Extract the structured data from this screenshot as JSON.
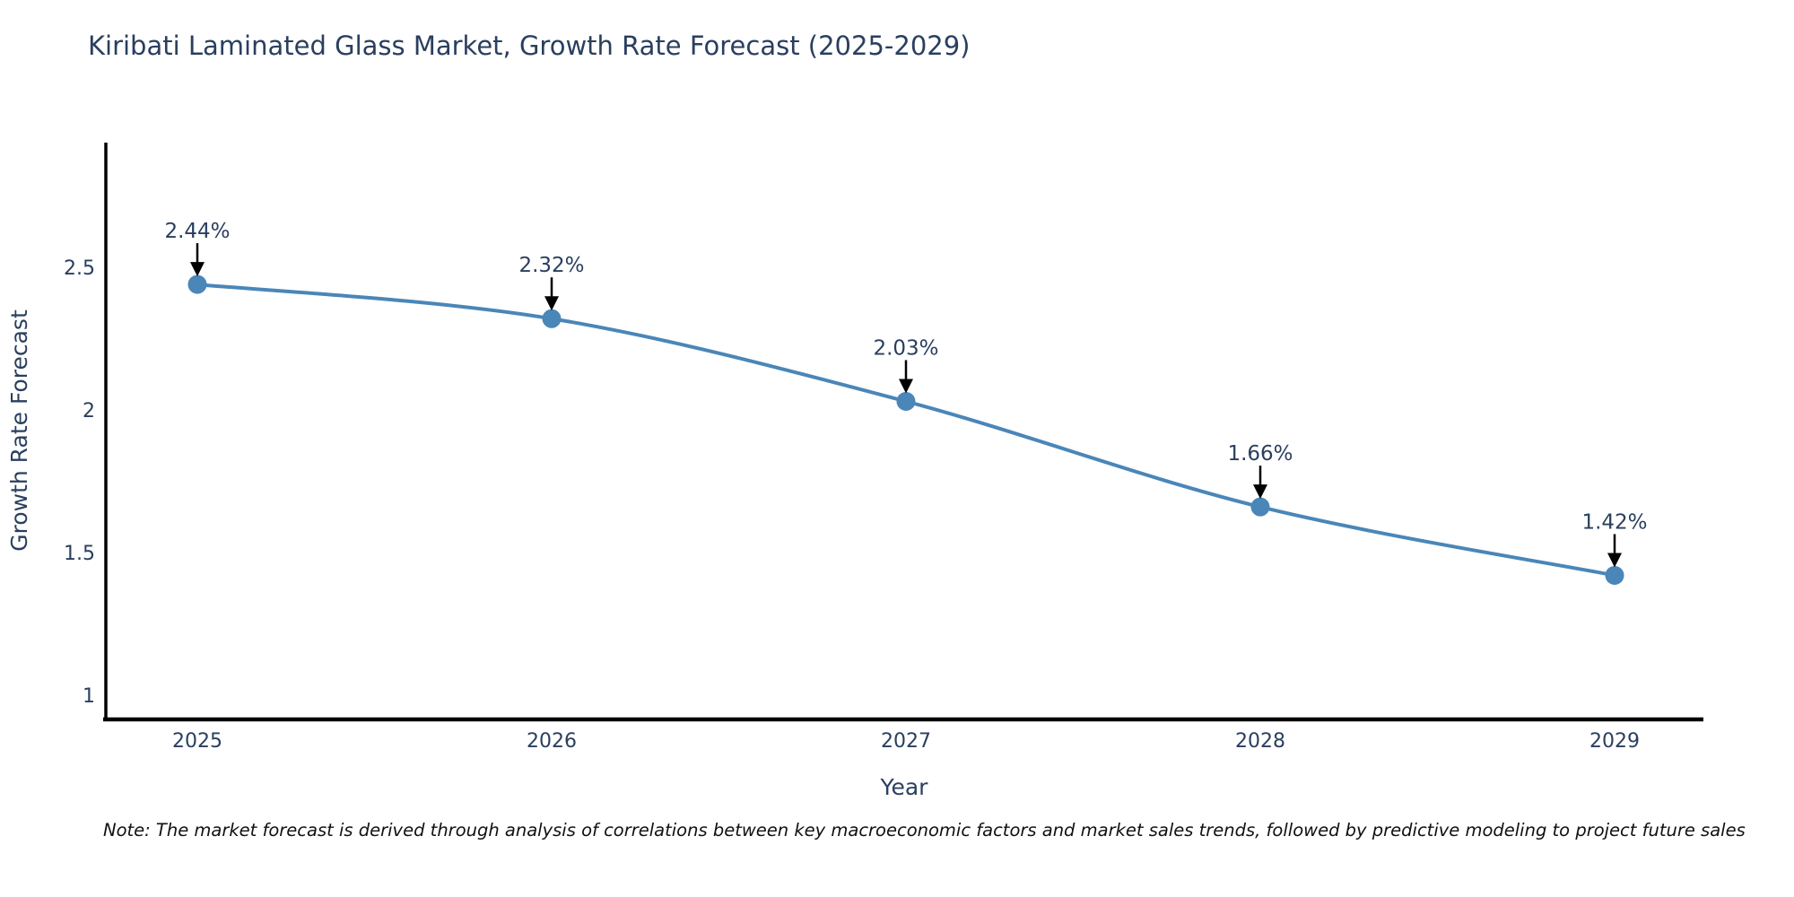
{
  "title": "Kiribati Laminated Glass Market, Growth Rate Forecast (2025-2029)",
  "note": "Note: The market forecast is derived through analysis of correlations between key macroeconomic factors and market sales trends, followed by predictive modeling to project future sales",
  "chart_data": {
    "type": "line",
    "title": "Kiribati Laminated Glass Market, Growth Rate Forecast (2025-2029)",
    "xlabel": "Year",
    "ylabel": "Growth Rate Forecast",
    "x": [
      2025,
      2026,
      2027,
      2028,
      2029
    ],
    "x_tick_labels": [
      "2025",
      "2026",
      "2027",
      "2028",
      "2029"
    ],
    "series": [
      {
        "name": "Growth Rate Forecast",
        "values": [
          2.44,
          2.32,
          2.03,
          1.66,
          1.42
        ],
        "point_labels": [
          "2.44%",
          "2.32%",
          "2.03%",
          "1.66%",
          "1.42%"
        ]
      }
    ],
    "y_ticks": [
      2.5,
      2,
      1.5,
      1
    ],
    "y_tick_labels": [
      "2.5",
      "2",
      "1.5",
      "1"
    ],
    "ylim": [
      0.9,
      3.05
    ],
    "grid": false,
    "legend_position": "none",
    "line_shape": "spline",
    "annotation_style": "value label above point with downward black arrow",
    "colors": {
      "line": "#4a86b8",
      "marker": "#4a86b8",
      "axis_line": "#000000",
      "tick_text": "#2a3f5f",
      "title_text": "#2a3f5f",
      "annotation_text": "#2a3f5f",
      "annotation_arrow": "#000000",
      "note_text": "#111111",
      "background": "#ffffff"
    }
  }
}
